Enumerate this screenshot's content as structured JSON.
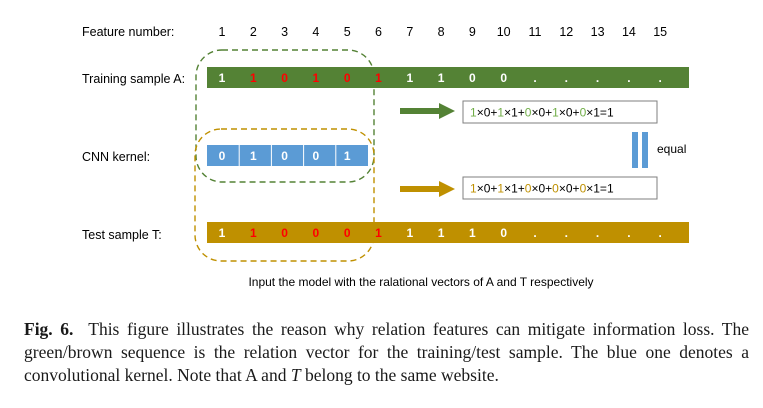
{
  "row_labels": {
    "feature_number": "Feature number:",
    "training": "Training sample A:",
    "kernel": "CNN kernel:",
    "test": "Test sample T:"
  },
  "feature_numbers": [
    "1",
    "2",
    "3",
    "4",
    "5",
    "6",
    "7",
    "8",
    "9",
    "10",
    "11",
    "12",
    "13",
    "14",
    "15"
  ],
  "training_sample": [
    {
      "v": "1",
      "red": false
    },
    {
      "v": "1",
      "red": true
    },
    {
      "v": "0",
      "red": true
    },
    {
      "v": "1",
      "red": true
    },
    {
      "v": "0",
      "red": true
    },
    {
      "v": "1",
      "red": true
    },
    {
      "v": "1",
      "red": false
    },
    {
      "v": "1",
      "red": false
    },
    {
      "v": "0",
      "red": false
    },
    {
      "v": "0",
      "red": false
    },
    {
      "v": ".",
      "red": false
    },
    {
      "v": ".",
      "red": false
    },
    {
      "v": ".",
      "red": false
    },
    {
      "v": ".",
      "red": false
    },
    {
      "v": ".",
      "red": false
    }
  ],
  "test_sample": [
    {
      "v": "1",
      "red": false
    },
    {
      "v": "1",
      "red": true
    },
    {
      "v": "0",
      "red": true
    },
    {
      "v": "0",
      "red": true
    },
    {
      "v": "0",
      "red": true
    },
    {
      "v": "1",
      "red": true
    },
    {
      "v": "1",
      "red": false
    },
    {
      "v": "1",
      "red": false
    },
    {
      "v": "1",
      "red": false
    },
    {
      "v": "0",
      "red": false
    },
    {
      "v": ".",
      "red": false
    },
    {
      "v": ".",
      "red": false
    },
    {
      "v": ".",
      "red": false
    },
    {
      "v": ".",
      "red": false
    },
    {
      "v": ".",
      "red": false
    }
  ],
  "kernel": [
    "0",
    "1",
    "0",
    "0",
    "1"
  ],
  "equations": {
    "training": [
      {
        "t": "1",
        "c": "green"
      },
      {
        "t": "×0+",
        "c": "black"
      },
      {
        "t": "1",
        "c": "green"
      },
      {
        "t": "×1+",
        "c": "black"
      },
      {
        "t": "0",
        "c": "green"
      },
      {
        "t": "×0+",
        "c": "black"
      },
      {
        "t": "1",
        "c": "green"
      },
      {
        "t": "×0+",
        "c": "black"
      },
      {
        "t": "0",
        "c": "green"
      },
      {
        "t": "×1=1",
        "c": "black"
      }
    ],
    "test": [
      {
        "t": "1",
        "c": "gold"
      },
      {
        "t": "×0+",
        "c": "black"
      },
      {
        "t": "1",
        "c": "gold"
      },
      {
        "t": "×1+",
        "c": "black"
      },
      {
        "t": "0",
        "c": "gold"
      },
      {
        "t": "×0+",
        "c": "black"
      },
      {
        "t": "0",
        "c": "gold"
      },
      {
        "t": "×0+",
        "c": "black"
      },
      {
        "t": "0",
        "c": "gold"
      },
      {
        "t": "×1=1",
        "c": "black"
      }
    ]
  },
  "equal_label": "equal",
  "bottom_note": "Input the model with the ralational vectors of A and T respectively",
  "caption": {
    "label": "Fig. 6.",
    "part1": "This figure illustrates the reason why relation features can mitigate information loss. The green/brown sequence is the relation vector for the training/test sample. The blue one denotes a convolutional kernel. Note that A and",
    "italic_T": "T",
    "part2": "belong to the same website."
  },
  "colors": {
    "green": "#548235",
    "gold": "#BF9000",
    "blue": "#5B9BD5",
    "red": "#FF0000",
    "white": "#FFFFFF",
    "eq_green": "#70AD47",
    "eq_gold": "#BF9000",
    "text": "#000000"
  }
}
